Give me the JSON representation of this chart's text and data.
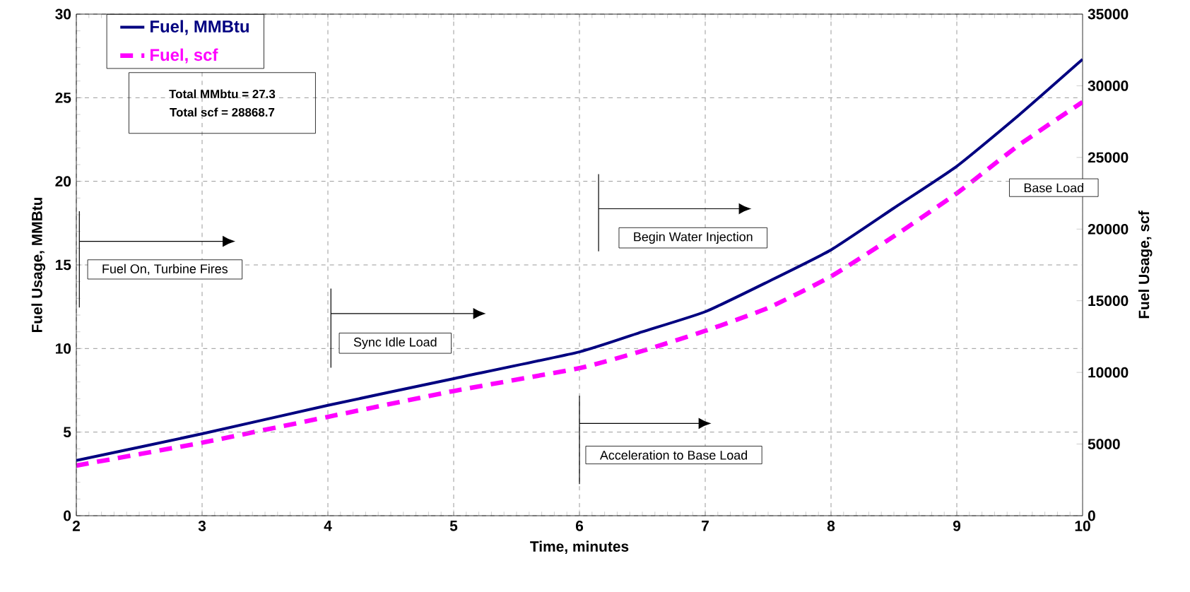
{
  "chart_data": {
    "type": "line",
    "xlabel": "Time, minutes",
    "ylabel": "Fuel Usage, MMBtu",
    "y2label": "Fuel Usage, scf",
    "xlim": [
      2,
      10
    ],
    "xticks": [
      2,
      3,
      4,
      5,
      6,
      7,
      8,
      9,
      10
    ],
    "ylim": [
      0,
      30
    ],
    "yticks": [
      0,
      5,
      10,
      15,
      20,
      25,
      30
    ],
    "y2lim": [
      0,
      35000
    ],
    "y2ticks": [
      0,
      5000,
      10000,
      15000,
      20000,
      25000,
      30000,
      35000
    ],
    "x": [
      2,
      3,
      4,
      5,
      6,
      6.5,
      7,
      7.5,
      8,
      8.5,
      9,
      9.5,
      10
    ],
    "series": [
      {
        "name": "Fuel, MMBtu",
        "color": "#000080",
        "line_style": "solid",
        "values": [
          3.3,
          4.9,
          6.6,
          8.2,
          9.8,
          11.0,
          12.2,
          14.0,
          15.9,
          18.4,
          20.9,
          24.0,
          27.3
        ]
      },
      {
        "name": "Fuel, scf",
        "color": "#ff00ff",
        "line_style": "dashed",
        "axis": "y2",
        "values": [
          3500,
          5100,
          6900,
          8700,
          10300,
          11500,
          12900,
          14500,
          16700,
          19500,
          22500,
          25900,
          28870
        ]
      }
    ],
    "grid": true,
    "legend": "top left",
    "marker": "none",
    "annotations": [
      "Fuel On, Turbine Fires",
      "Sync Idle Load",
      "Begin Water Injection",
      "Acceleration to Base Load",
      "Total MMbtu = 27.3",
      "Total scf = 28868.7",
      "Base Load"
    ]
  }
}
